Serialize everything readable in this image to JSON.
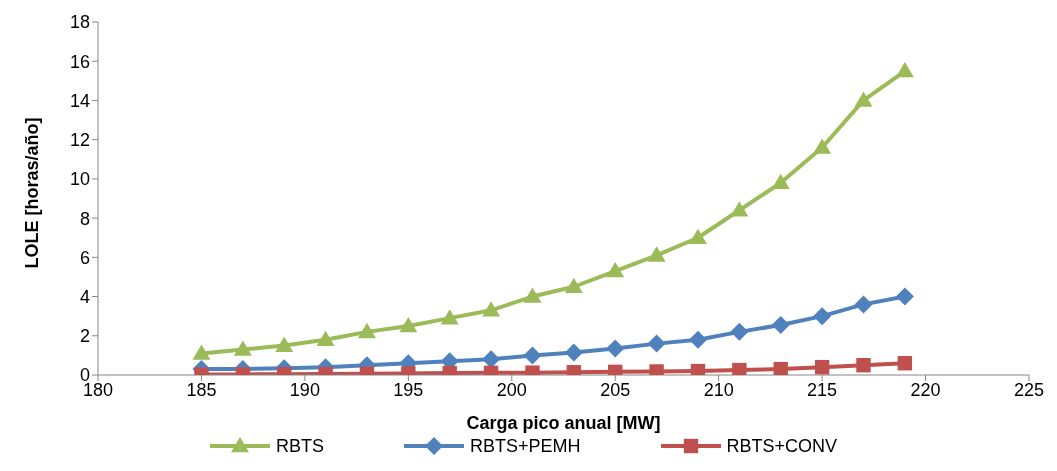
{
  "chart_data": {
    "type": "line",
    "xlabel": "Carga pico anual [MW]",
    "ylabel": "LOLE [horas/año]",
    "x": [
      185,
      187,
      189,
      191,
      193,
      195,
      197,
      199,
      201,
      203,
      205,
      207,
      209,
      211,
      213,
      215,
      217,
      219
    ],
    "xlim": [
      180,
      225
    ],
    "xticks": [
      180,
      185,
      190,
      195,
      200,
      205,
      210,
      215,
      220,
      225
    ],
    "ylim": [
      0,
      18
    ],
    "yticks": [
      0,
      2,
      4,
      6,
      8,
      10,
      12,
      14,
      16,
      18
    ],
    "grid": false,
    "legend": "bottom",
    "line_style": "solid",
    "series": [
      {
        "name": "RBTS",
        "color": "#9bbb59",
        "marker": "triangle",
        "values": [
          1.1,
          1.3,
          1.5,
          1.8,
          2.2,
          2.5,
          2.9,
          3.3,
          4.0,
          4.5,
          5.3,
          6.1,
          7.0,
          8.4,
          9.8,
          11.6,
          14.0,
          15.5
        ]
      },
      {
        "name": "RBTS+PEMH",
        "color": "#4f81bd",
        "marker": "diamond",
        "values": [
          0.3,
          0.3,
          0.35,
          0.4,
          0.5,
          0.6,
          0.7,
          0.8,
          1.0,
          1.15,
          1.35,
          1.6,
          1.8,
          2.2,
          2.55,
          3.0,
          3.6,
          4.0
        ]
      },
      {
        "name": "RBTS+CONV",
        "color": "#c0504d",
        "marker": "square",
        "values": [
          0.02,
          0.03,
          0.04,
          0.05,
          0.06,
          0.08,
          0.1,
          0.11,
          0.12,
          0.14,
          0.16,
          0.18,
          0.2,
          0.25,
          0.3,
          0.4,
          0.5,
          0.6
        ]
      }
    ]
  }
}
